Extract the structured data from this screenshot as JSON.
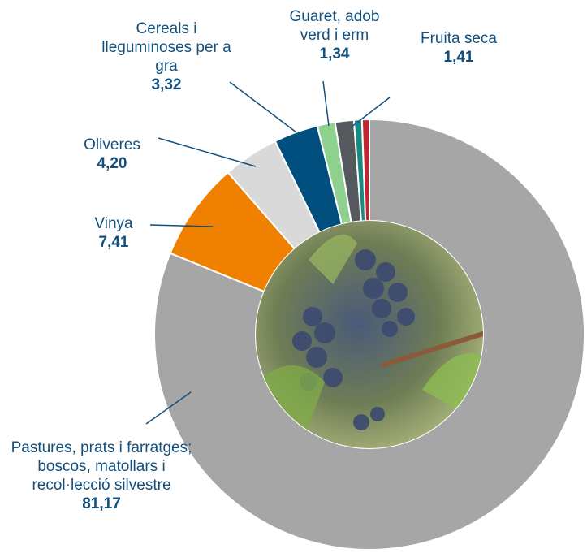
{
  "chart_data": {
    "type": "donut",
    "categories": [
      "Pastures, prats i farratges; boscos, matollars i recol·lecció silvestre",
      "Vinya",
      "Oliveres",
      "Cereals i lleguminoses per a gra",
      "Guaret, adob verd i erm",
      "Fruita seca",
      null,
      null
    ],
    "values": [
      81.17,
      7.41,
      4.2,
      3.32,
      1.34,
      1.41,
      0.6,
      0.55
    ],
    "value_labels": [
      "81,17",
      "7,41",
      "4,20",
      "3,32",
      "1,34",
      "1,41",
      null,
      null
    ],
    "colors": [
      "#a6a6a6",
      "#f08000",
      "#d9d9d9",
      "#004f7f",
      "#8fd18f",
      "#55595e",
      "#1a8a80",
      "#c0272d"
    ]
  }
}
